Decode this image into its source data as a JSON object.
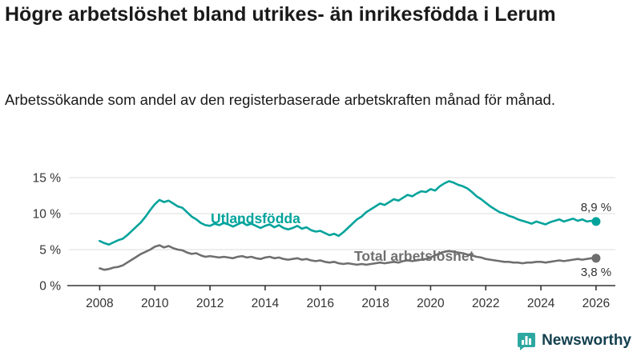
{
  "header": {
    "title": "Högre arbetslöshet bland utrikes- än inrikesfödda i Lerum",
    "subtitle": "Arbetssökande som andel av den registerbaserade arbetskraften månad för månad."
  },
  "footer": {
    "brand": "Newsworthy"
  },
  "colors": {
    "teal": "#00a39b",
    "gray": "#6f6f6f",
    "axis": "#333333",
    "grid": "#dcdcdc",
    "label_text": "#333333",
    "brand_navy": "#14404f",
    "brand_teal": "#2ca8a0"
  },
  "chart_data": {
    "type": "line",
    "title": "Högre arbetslöshet bland utrikes- än inrikesfödda i Lerum",
    "xlabel": "",
    "ylabel": "",
    "xlim": [
      2007.0,
      2026.7
    ],
    "ylim": [
      0,
      15
    ],
    "grid": true,
    "legend_position": "inline",
    "yticks": [
      {
        "value": 0,
        "label": "0 %"
      },
      {
        "value": 5,
        "label": "5 %"
      },
      {
        "value": 10,
        "label": "10 %"
      },
      {
        "value": 15,
        "label": "15 %"
      }
    ],
    "xticks": [
      2008,
      2010,
      2012,
      2014,
      2016,
      2018,
      2020,
      2022,
      2024,
      2026
    ],
    "series": [
      {
        "name": "Utlandsfödda",
        "color": "#00a39b",
        "end_label": "8,9 %",
        "end_label_position": "above",
        "x_start": 2008,
        "x_step": 0.1666667,
        "values": [
          6.2,
          5.9,
          5.7,
          6.0,
          6.3,
          6.5,
          7.0,
          7.6,
          8.2,
          8.8,
          9.6,
          10.5,
          11.3,
          11.9,
          11.6,
          11.8,
          11.4,
          11.0,
          10.8,
          10.2,
          9.6,
          9.2,
          8.7,
          8.4,
          8.3,
          8.6,
          8.4,
          8.7,
          8.5,
          8.2,
          8.5,
          8.8,
          8.4,
          8.6,
          8.3,
          8.0,
          8.3,
          8.5,
          8.1,
          8.4,
          8.0,
          7.8,
          8.0,
          8.3,
          7.9,
          8.1,
          7.7,
          7.5,
          7.6,
          7.3,
          7.0,
          7.2,
          6.9,
          7.4,
          8.0,
          8.6,
          9.2,
          9.6,
          10.2,
          10.6,
          11.0,
          11.4,
          11.2,
          11.6,
          12.0,
          11.8,
          12.2,
          12.6,
          12.4,
          12.8,
          13.1,
          13.0,
          13.4,
          13.2,
          13.8,
          14.2,
          14.5,
          14.3,
          14.0,
          13.8,
          13.5,
          13.0,
          12.4,
          12.0,
          11.5,
          11.0,
          10.6,
          10.2,
          10.0,
          9.7,
          9.5,
          9.2,
          9.0,
          8.8,
          8.6,
          8.9,
          8.7,
          8.5,
          8.8,
          9.0,
          9.2,
          8.9,
          9.1,
          9.3,
          9.0,
          9.2,
          8.9,
          9.0,
          8.9
        ]
      },
      {
        "name": "Total arbetslöshet",
        "color": "#6f6f6f",
        "end_label": "3,8 %",
        "end_label_position": "below",
        "x_start": 2008,
        "x_step": 0.1666667,
        "values": [
          2.4,
          2.2,
          2.3,
          2.5,
          2.6,
          2.8,
          3.2,
          3.6,
          4.0,
          4.4,
          4.7,
          5.0,
          5.4,
          5.6,
          5.3,
          5.5,
          5.2,
          5.0,
          4.9,
          4.6,
          4.4,
          4.5,
          4.2,
          4.0,
          4.1,
          4.0,
          3.9,
          4.0,
          3.9,
          3.8,
          4.0,
          4.1,
          3.9,
          4.0,
          3.8,
          3.7,
          3.9,
          4.0,
          3.8,
          3.9,
          3.7,
          3.6,
          3.7,
          3.8,
          3.6,
          3.7,
          3.5,
          3.4,
          3.5,
          3.3,
          3.2,
          3.3,
          3.1,
          3.0,
          3.1,
          3.0,
          2.9,
          3.0,
          2.9,
          3.0,
          3.1,
          3.2,
          3.1,
          3.2,
          3.3,
          3.2,
          3.4,
          3.5,
          3.4,
          3.5,
          3.6,
          3.7,
          3.9,
          4.2,
          4.5,
          4.7,
          4.8,
          4.7,
          4.6,
          4.5,
          4.3,
          4.2,
          4.0,
          3.9,
          3.7,
          3.6,
          3.5,
          3.4,
          3.3,
          3.3,
          3.2,
          3.2,
          3.1,
          3.2,
          3.2,
          3.3,
          3.3,
          3.2,
          3.3,
          3.4,
          3.5,
          3.4,
          3.5,
          3.6,
          3.7,
          3.6,
          3.7,
          3.8,
          3.8
        ]
      }
    ]
  }
}
